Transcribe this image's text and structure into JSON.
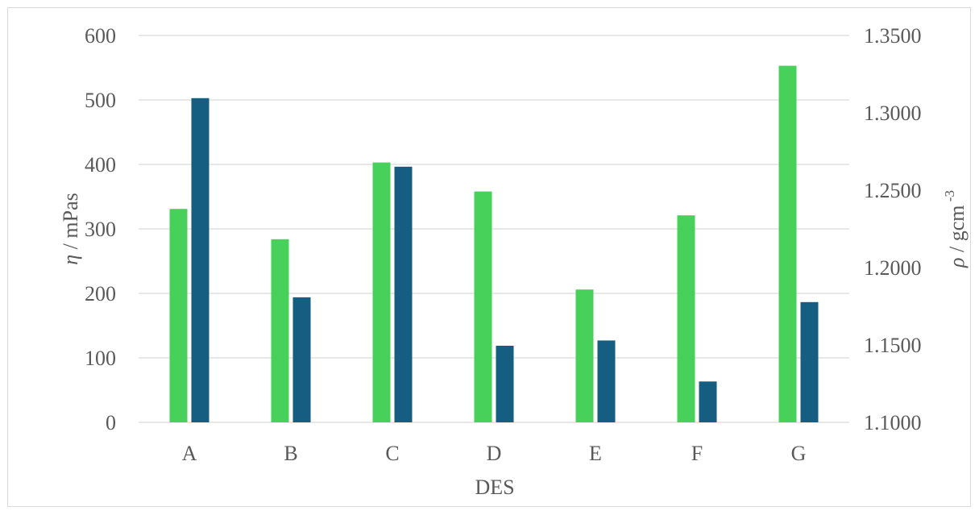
{
  "chart_data": {
    "type": "bar",
    "categories": [
      "A",
      "B",
      "C",
      "D",
      "E",
      "F",
      "G"
    ],
    "series": [
      {
        "axis": "left",
        "values": [
          331,
          284,
          403,
          358,
          206,
          321,
          553
        ],
        "color": "#47d15a"
      },
      {
        "axis": "right",
        "values": [
          1.3095,
          1.1808,
          1.2652,
          1.1495,
          1.1529,
          1.1264,
          1.1777
        ],
        "color": "#155e82"
      }
    ],
    "xlabel": "DES",
    "ylabel_left": {
      "symbol": "η",
      "unit": " / mPas"
    },
    "ylabel_right": {
      "symbol": "ρ",
      "unit": " / gcm",
      "sup": " -3"
    },
    "ylim_left": [
      0,
      600
    ],
    "yticks_left": [
      "0",
      "100",
      "200",
      "300",
      "400",
      "500",
      "600"
    ],
    "ylim_right": [
      1.1,
      1.35
    ],
    "yticks_right": [
      "1.1000",
      "1.1500",
      "1.2000",
      "1.2500",
      "1.3000",
      "1.3500"
    ],
    "grid": true,
    "legend": "none"
  }
}
